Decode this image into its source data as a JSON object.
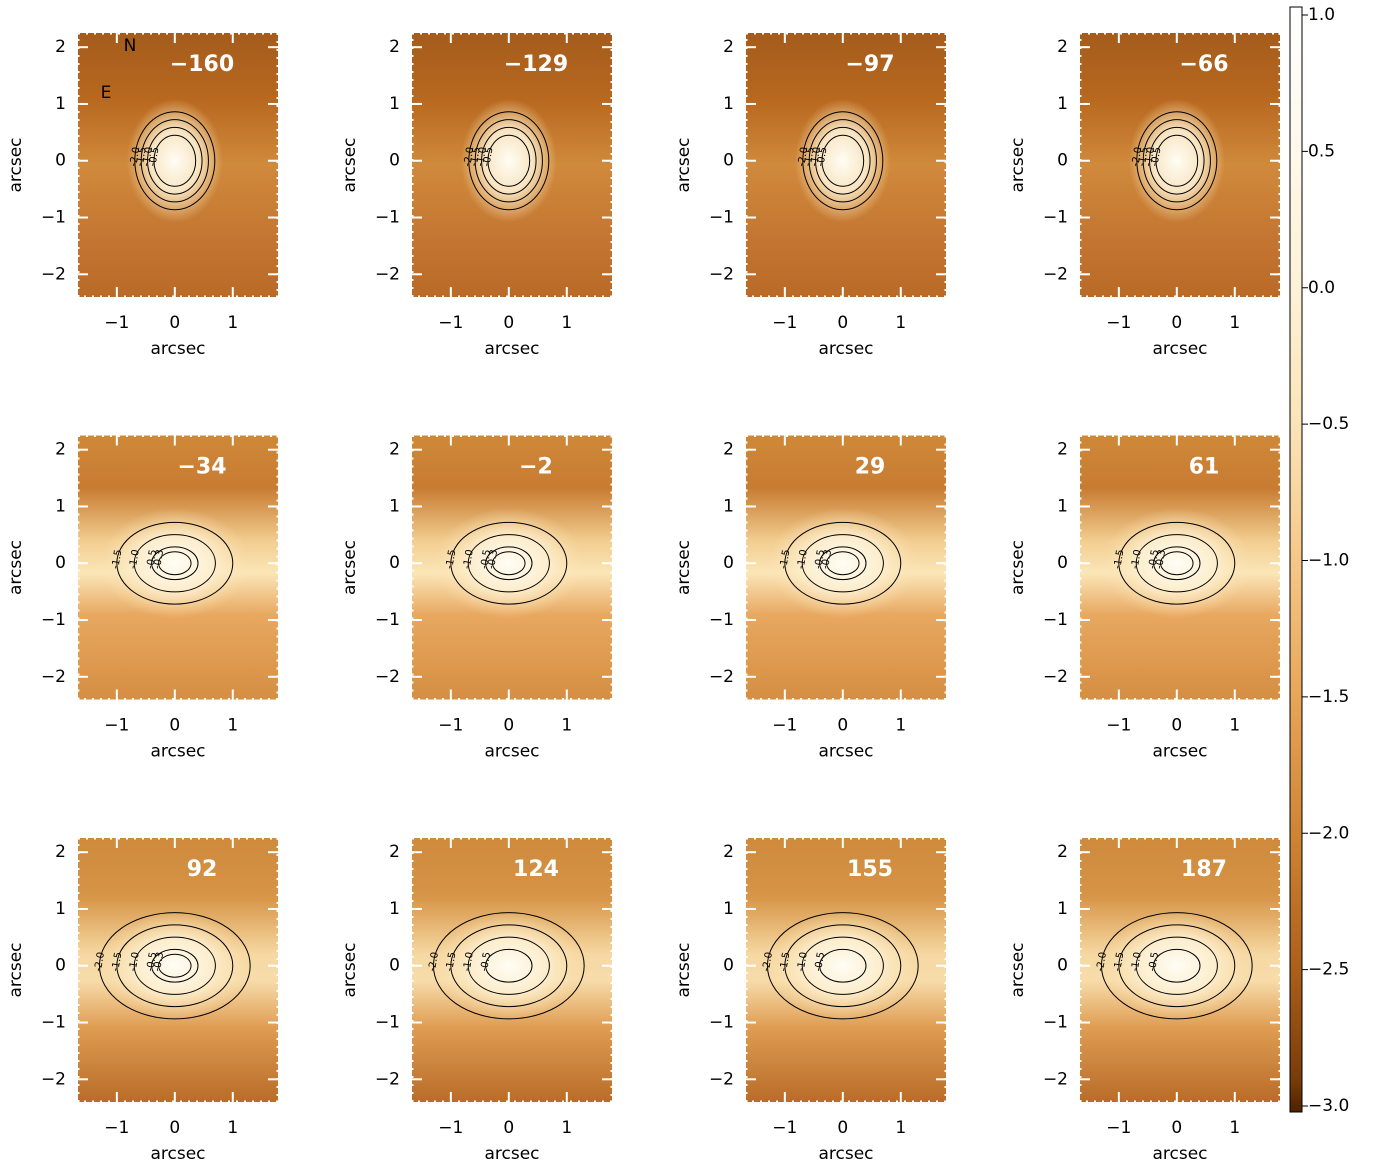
{
  "chart_data": [
    {
      "type": "image",
      "velocity_label": "−160",
      "xlabel": "arcsec",
      "ylabel": "arcsec",
      "xlim": [
        -1.67,
        1.78
      ],
      "ylim": [
        -2.4,
        2.25
      ],
      "xticks": [
        {
          "value": -1,
          "label": "−1"
        },
        0,
        1
      ],
      "yticks": [
        {
          "value": -2,
          "label": "−2"
        },
        {
          "value": -1,
          "label": "−1"
        },
        0,
        1,
        2
      ],
      "contours": [
        {
          "value": -2,
          "label": "-2.0"
        },
        {
          "value": -1.5,
          "label": "-1.5"
        },
        {
          "value": -1,
          "label": "-1.0"
        },
        {
          "value": -0.5,
          "label": "-0.5"
        }
      ]
    },
    {
      "type": "image",
      "velocity_label": "−129",
      "xlabel": "arcsec",
      "ylabel": "arcsec",
      "xlim": [
        -1.67,
        1.78
      ],
      "ylim": [
        -2.4,
        2.25
      ],
      "xticks": [
        {
          "value": -1,
          "label": "−1"
        },
        0,
        1
      ],
      "yticks": [
        {
          "value": -2,
          "label": "−2"
        },
        {
          "value": -1,
          "label": "−1"
        },
        0,
        1,
        2
      ],
      "contours": [
        {
          "value": -2,
          "label": "-2.0"
        },
        {
          "value": -1.5,
          "label": "-1.5"
        },
        {
          "value": -1,
          "label": "-1.0"
        },
        {
          "value": -0.5,
          "label": "-0.5"
        }
      ]
    },
    {
      "type": "image",
      "velocity_label": "−97",
      "xlabel": "arcsec",
      "ylabel": "arcsec",
      "xlim": [
        -1.67,
        1.78
      ],
      "ylim": [
        -2.4,
        2.25
      ],
      "xticks": [
        {
          "value": -1,
          "label": "−1"
        },
        0,
        1
      ],
      "yticks": [
        {
          "value": -2,
          "label": "−2"
        },
        {
          "value": -1,
          "label": "−1"
        },
        0,
        1,
        2
      ],
      "contours": [
        {
          "value": -2,
          "label": "-2.0"
        },
        {
          "value": -1.5,
          "label": "-1.5"
        },
        {
          "value": -1,
          "label": "-1.0"
        },
        {
          "value": -0.5,
          "label": "-0.5"
        }
      ]
    },
    {
      "type": "image",
      "velocity_label": "−66",
      "xlabel": "arcsec",
      "ylabel": "arcsec",
      "xlim": [
        -1.67,
        1.78
      ],
      "ylim": [
        -2.4,
        2.25
      ],
      "xticks": [
        {
          "value": -1,
          "label": "−1"
        },
        0,
        1
      ],
      "yticks": [
        {
          "value": -2,
          "label": "−2"
        },
        {
          "value": -1,
          "label": "−1"
        },
        0,
        1,
        2
      ],
      "contours": [
        {
          "value": -2,
          "label": "-2.0"
        },
        {
          "value": -1.5,
          "label": "-1.5"
        },
        {
          "value": -1,
          "label": "-1.0"
        },
        {
          "value": -0.5,
          "label": "-0.5"
        }
      ]
    },
    {
      "type": "image",
      "velocity_label": "−34",
      "xlabel": "arcsec",
      "ylabel": "arcsec",
      "xlim": [
        -1.67,
        1.78
      ],
      "ylim": [
        -2.4,
        2.25
      ],
      "xticks": [
        {
          "value": -1,
          "label": "−1"
        },
        0,
        1
      ],
      "yticks": [
        {
          "value": -2,
          "label": "−2"
        },
        {
          "value": -1,
          "label": "−1"
        },
        0,
        1,
        2
      ],
      "contours": [
        {
          "value": -1.5,
          "label": "-1.5"
        },
        {
          "value": -1,
          "label": "-1.0"
        },
        {
          "value": -0.5,
          "label": "-0.5"
        },
        {
          "value": -0.3,
          "label": "-0.3"
        }
      ]
    },
    {
      "type": "image",
      "velocity_label": "−2",
      "xlabel": "arcsec",
      "ylabel": "arcsec",
      "xlim": [
        -1.67,
        1.78
      ],
      "ylim": [
        -2.4,
        2.25
      ],
      "xticks": [
        {
          "value": -1,
          "label": "−1"
        },
        0,
        1
      ],
      "yticks": [
        {
          "value": -2,
          "label": "−2"
        },
        {
          "value": -1,
          "label": "−1"
        },
        0,
        1,
        2
      ],
      "contours": [
        {
          "value": -1.5,
          "label": "-1.5"
        },
        {
          "value": -1,
          "label": "-1.0"
        },
        {
          "value": -0.5,
          "label": "-0.5"
        },
        {
          "value": -0.3,
          "label": "-0.3"
        }
      ]
    },
    {
      "type": "image",
      "velocity_label": "29",
      "xlabel": "arcsec",
      "ylabel": "arcsec",
      "xlim": [
        -1.67,
        1.78
      ],
      "ylim": [
        -2.4,
        2.25
      ],
      "xticks": [
        {
          "value": -1,
          "label": "−1"
        },
        0,
        1
      ],
      "yticks": [
        {
          "value": -2,
          "label": "−2"
        },
        {
          "value": -1,
          "label": "−1"
        },
        0,
        1,
        2
      ],
      "contours": [
        {
          "value": -1.5,
          "label": "-1.5"
        },
        {
          "value": -1,
          "label": "-1.0"
        },
        {
          "value": -0.5,
          "label": "-0.5"
        },
        {
          "value": -0.3,
          "label": "-0.3"
        }
      ]
    },
    {
      "type": "image",
      "velocity_label": "61",
      "xlabel": "arcsec",
      "ylabel": "arcsec",
      "xlim": [
        -1.67,
        1.78
      ],
      "ylim": [
        -2.4,
        2.25
      ],
      "xticks": [
        {
          "value": -1,
          "label": "−1"
        },
        0,
        1
      ],
      "yticks": [
        {
          "value": -2,
          "label": "−2"
        },
        {
          "value": -1,
          "label": "−1"
        },
        0,
        1,
        2
      ],
      "contours": [
        {
          "value": -1.5,
          "label": "-1.5"
        },
        {
          "value": -1,
          "label": "-1.0"
        },
        {
          "value": -0.5,
          "label": "-0.5"
        },
        {
          "value": -0.3,
          "label": "-0.3"
        }
      ]
    },
    {
      "type": "image",
      "velocity_label": "92",
      "xlabel": "arcsec",
      "ylabel": "arcsec",
      "xlim": [
        -1.67,
        1.78
      ],
      "ylim": [
        -2.4,
        2.25
      ],
      "xticks": [
        {
          "value": -1,
          "label": "−1"
        },
        0,
        1
      ],
      "yticks": [
        {
          "value": -2,
          "label": "−2"
        },
        {
          "value": -1,
          "label": "−1"
        },
        0,
        1,
        2
      ],
      "contours": [
        {
          "value": -2,
          "label": "-2.0"
        },
        {
          "value": -1.5,
          "label": "-1.5"
        },
        {
          "value": -1,
          "label": "-1.0"
        },
        {
          "value": -0.5,
          "label": "-0.5"
        },
        {
          "value": -0.3,
          "label": "-0.3"
        }
      ]
    },
    {
      "type": "image",
      "velocity_label": "124",
      "xlabel": "arcsec",
      "ylabel": "arcsec",
      "xlim": [
        -1.67,
        1.78
      ],
      "ylim": [
        -2.4,
        2.25
      ],
      "xticks": [
        {
          "value": -1,
          "label": "−1"
        },
        0,
        1
      ],
      "yticks": [
        {
          "value": -2,
          "label": "−2"
        },
        {
          "value": -1,
          "label": "−1"
        },
        0,
        1,
        2
      ],
      "contours": [
        {
          "value": -2,
          "label": "-2.0"
        },
        {
          "value": -1.5,
          "label": "-1.5"
        },
        {
          "value": -1,
          "label": "-1.0"
        },
        {
          "value": -0.5,
          "label": "-0.5"
        }
      ]
    },
    {
      "type": "image",
      "velocity_label": "155",
      "xlabel": "arcsec",
      "ylabel": "arcsec",
      "xlim": [
        -1.67,
        1.78
      ],
      "ylim": [
        -2.4,
        2.25
      ],
      "xticks": [
        {
          "value": -1,
          "label": "−1"
        },
        0,
        1
      ],
      "yticks": [
        {
          "value": -2,
          "label": "−2"
        },
        {
          "value": -1,
          "label": "−1"
        },
        0,
        1,
        2
      ],
      "contours": [
        {
          "value": -2,
          "label": "-2.0"
        },
        {
          "value": -1.5,
          "label": "-1.5"
        },
        {
          "value": -1,
          "label": "-1.0"
        },
        {
          "value": -0.5,
          "label": "-0.5"
        }
      ]
    },
    {
      "type": "image",
      "velocity_label": "187",
      "xlabel": "arcsec",
      "ylabel": "arcsec",
      "xlim": [
        -1.67,
        1.78
      ],
      "ylim": [
        -2.4,
        2.25
      ],
      "xticks": [
        {
          "value": -1,
          "label": "−1"
        },
        0,
        1
      ],
      "yticks": [
        {
          "value": -2,
          "label": "−2"
        },
        {
          "value": -1,
          "label": "−1"
        },
        0,
        1,
        2
      ],
      "contours": [
        {
          "value": -2,
          "label": "-2.0"
        },
        {
          "value": -1.5,
          "label": "-1.5"
        },
        {
          "value": -1,
          "label": "-1.0"
        },
        {
          "value": -0.5,
          "label": "-0.5"
        }
      ]
    },
    {
      "type": "colorbar",
      "ylim": [
        -3,
        1
      ],
      "yticks": [
        {
          "value": 1,
          "label": "1.0"
        },
        {
          "value": 0.5,
          "label": "0.5"
        },
        {
          "value": 0,
          "label": "0.0"
        },
        {
          "value": -0.5,
          "label": "−0.5"
        },
        {
          "value": -1,
          "label": "−1.0"
        },
        {
          "value": -1.5,
          "label": "−1.5"
        },
        {
          "value": -2,
          "label": "−2.0"
        },
        {
          "value": -2.5,
          "label": "−2.5"
        },
        {
          "value": -3,
          "label": "−3.0"
        }
      ]
    }
  ],
  "compass": {
    "north": "N",
    "east": "E"
  }
}
